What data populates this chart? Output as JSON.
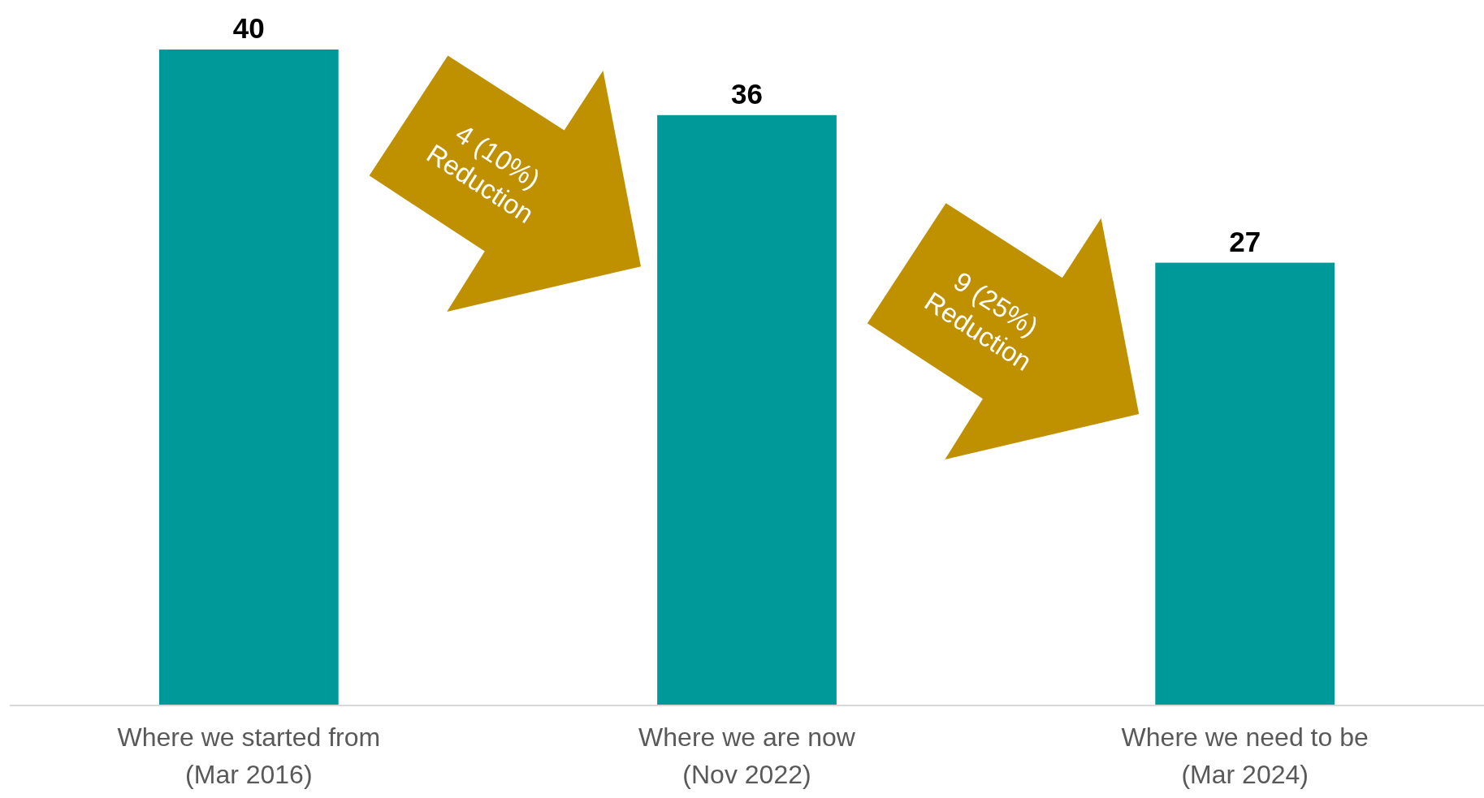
{
  "chart_data": {
    "type": "bar",
    "categories": [
      "Where we started from\n(Mar 2016)",
      "Where we are now\n(Nov 2022)",
      "Where we need to be\n(Mar 2024)"
    ],
    "values": [
      40,
      36,
      27
    ],
    "color": "#009999",
    "ylim": [
      0,
      40
    ],
    "tick_labels": "x",
    "data_labels": true,
    "annotations": [
      "4 (10%)\nReduction",
      "9 (25%)\nReduction"
    ]
  }
}
